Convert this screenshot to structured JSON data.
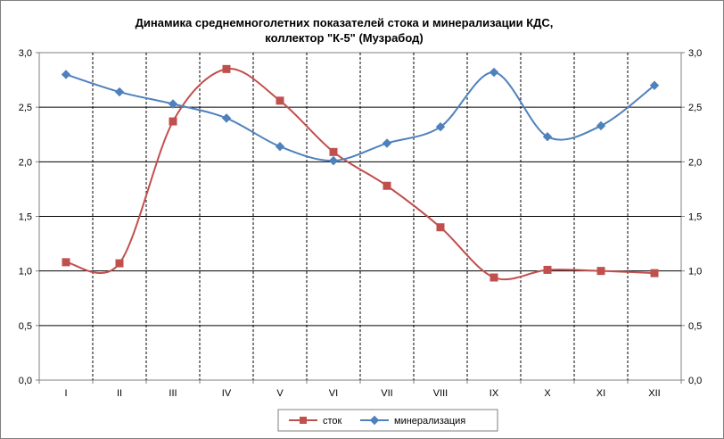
{
  "chart_data": {
    "type": "line",
    "title_line1": "Динамика среднемноголетних показателей стока и минерализации КДС,",
    "title_line2": "коллектор \"К-5\" (Музрабод)",
    "categories": [
      "I",
      "II",
      "III",
      "IV",
      "V",
      "VI",
      "VII",
      "VIII",
      "IX",
      "X",
      "XI",
      "XII"
    ],
    "ylim": [
      0,
      3
    ],
    "yticks": [
      "0,0",
      "0,5",
      "1,0",
      "1,5",
      "2,0",
      "2,5",
      "3,0"
    ],
    "y_tick_values": [
      0,
      0.5,
      1.0,
      1.5,
      2.0,
      2.5,
      3.0
    ],
    "grid": true,
    "legend_position": "bottom",
    "series": [
      {
        "name": "сток",
        "color": "#c0504d",
        "marker": "square",
        "values": [
          1.08,
          1.07,
          2.37,
          2.85,
          2.56,
          2.09,
          1.78,
          1.4,
          0.94,
          1.01,
          1.0,
          0.98
        ]
      },
      {
        "name": "минерализация",
        "color": "#4f81bd",
        "marker": "diamond",
        "values": [
          2.8,
          2.64,
          2.53,
          2.4,
          2.14,
          2.01,
          2.17,
          2.32,
          2.82,
          2.23,
          2.33,
          2.7
        ]
      }
    ]
  }
}
